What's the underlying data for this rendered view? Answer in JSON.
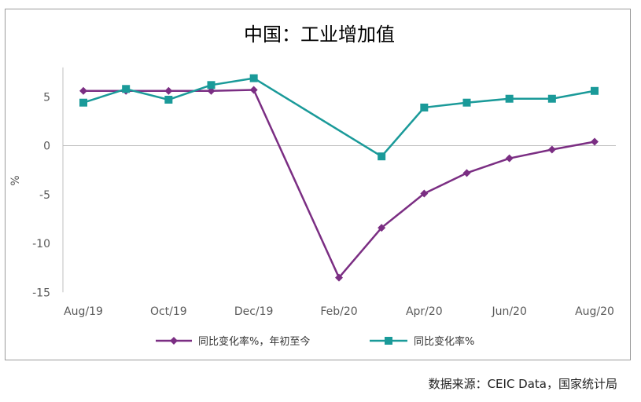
{
  "chart_data": {
    "type": "line",
    "title": "中国：工业增加值",
    "ylabel": "%",
    "xlabel": "",
    "ylim": [
      -15,
      8
    ],
    "yticks": [
      5,
      0,
      -5,
      -10,
      -15
    ],
    "x": [
      "Aug/19",
      "Sep/19",
      "Oct/19",
      "Nov/19",
      "Dec/19",
      "Jan/20",
      "Feb/20",
      "Mar/20",
      "Apr/20",
      "May/20",
      "Jun/20",
      "Jul/20",
      "Aug/20"
    ],
    "xtick_labels": [
      "Aug/19",
      "Oct/19",
      "Dec/19",
      "Feb/20",
      "Apr/20",
      "Jun/20",
      "Aug/20"
    ],
    "series": [
      {
        "name": "同比变化率%，年初至今",
        "color": "#7b2e83",
        "marker": "diamond",
        "values": [
          5.6,
          5.6,
          5.6,
          5.6,
          5.7,
          null,
          -13.5,
          -8.4,
          -4.9,
          -2.8,
          -1.3,
          -0.4,
          0.4
        ]
      },
      {
        "name": "同比变化率%",
        "color": "#1a9a99",
        "marker": "square",
        "values": [
          4.4,
          5.8,
          4.7,
          6.2,
          6.9,
          null,
          null,
          -1.1,
          3.9,
          4.4,
          4.8,
          4.8,
          5.6
        ]
      }
    ],
    "grid": false,
    "legend_position": "bottom"
  },
  "source_note": "数据来源：CEIC Data，国家统计局"
}
